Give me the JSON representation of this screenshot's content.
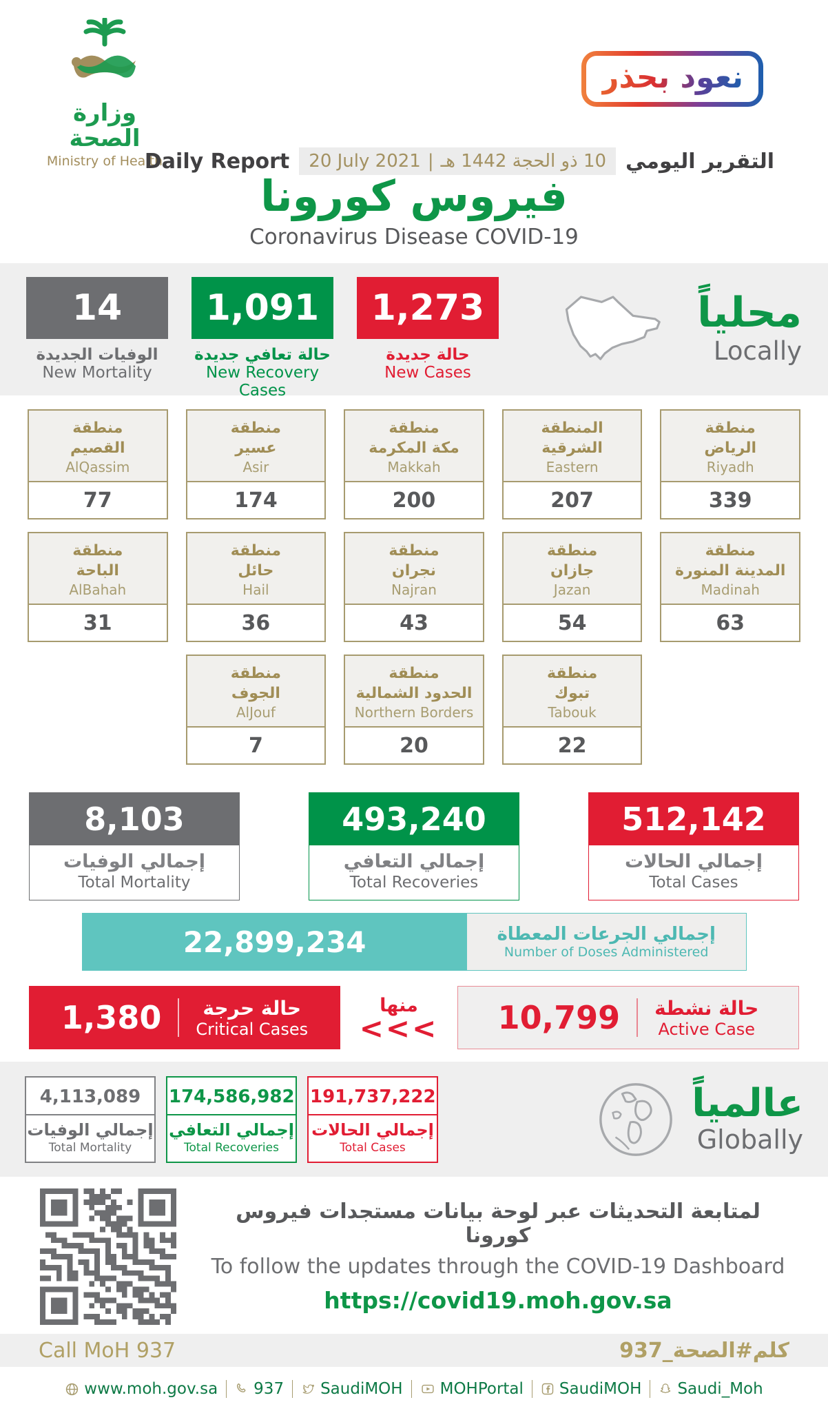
{
  "colors": {
    "green": "#0e9648",
    "box_green": "#009349",
    "red": "#e11d33",
    "gray": "#6d6e71",
    "tan": "#a39161",
    "teal": "#5fc5bf"
  },
  "header": {
    "logo_ar": "وزارة الصحة",
    "logo_en": "Ministry of Health",
    "badge": "نعود بحذر",
    "daily_report_en": "Daily Report",
    "date_en": "20 July 2021",
    "date_sep": "|",
    "date_ar": "10 ذو الحجة 1442 هـ",
    "daily_report_ar": "التقرير اليومي",
    "title_ar": "فيروس كورونا",
    "title_en": "Coronavirus Disease COVID-19"
  },
  "local": {
    "heading_ar": "محلياً",
    "heading_en": "Locally",
    "stats": [
      {
        "value": "14",
        "label_ar": "الوفيات الجديدة",
        "label_en": "New Mortality"
      },
      {
        "value": "1,091",
        "label_ar": "حالة تعافي جديدة",
        "label_en": "New Recovery Cases"
      },
      {
        "value": "1,273",
        "label_ar": "حالة جديدة",
        "label_en": "New Cases"
      }
    ]
  },
  "regions": [
    {
      "ar1": "منطقة",
      "ar2": "القصيم",
      "en": "AlQassim",
      "value": "77"
    },
    {
      "ar1": "منطقة",
      "ar2": "عسير",
      "en": "Asir",
      "value": "174"
    },
    {
      "ar1": "منطقة",
      "ar2": "مكة المكرمة",
      "en": "Makkah",
      "value": "200"
    },
    {
      "ar1": "المنطقة",
      "ar2": "الشرقية",
      "en": "Eastern",
      "value": "207"
    },
    {
      "ar1": "منطقة",
      "ar2": "الرياض",
      "en": "Riyadh",
      "value": "339"
    },
    {
      "ar1": "منطقة",
      "ar2": "الباحة",
      "en": "AlBahah",
      "value": "31"
    },
    {
      "ar1": "منطقة",
      "ar2": "حائل",
      "en": "Hail",
      "value": "36"
    },
    {
      "ar1": "منطقة",
      "ar2": "نجران",
      "en": "Najran",
      "value": "43"
    },
    {
      "ar1": "منطقة",
      "ar2": "جازان",
      "en": "Jazan",
      "value": "54"
    },
    {
      "ar1": "منطقة",
      "ar2": "المدينة المنورة",
      "en": "Madinah",
      "value": "63"
    },
    {
      "ar1": "منطقة",
      "ar2": "الجوف",
      "en": "AlJouf",
      "value": "7"
    },
    {
      "ar1": "منطقة",
      "ar2": "الحدود الشمالية",
      "en": "Northern Borders",
      "value": "20"
    },
    {
      "ar1": "منطقة",
      "ar2": "تبوك",
      "en": "Tabouk",
      "value": "22"
    }
  ],
  "totals": [
    {
      "value": "8,103",
      "label_ar": "إجمالي الوفيات",
      "label_en": "Total Mortality"
    },
    {
      "value": "493,240",
      "label_ar": "إجمالي التعافي",
      "label_en": "Total Recoveries"
    },
    {
      "value": "512,142",
      "label_ar": "إجمالي الحالات",
      "label_en": "Total Cases"
    }
  ],
  "doses": {
    "value": "22,899,234",
    "label_ar": "إجمالي الجرعات المعطاة",
    "label_en": "Number of Doses Administered"
  },
  "critical": {
    "value": "1,380",
    "label_ar": "حالة حرجة",
    "label_en": "Critical Cases"
  },
  "of_them": {
    "label_ar": "منها",
    "chevrons": "<<<"
  },
  "active": {
    "value": "10,799",
    "label_ar": "حالة نشطة",
    "label_en": "Active Case"
  },
  "global": {
    "heading_ar": "عالمياً",
    "heading_en": "Globally",
    "stats": [
      {
        "value": "4,113,089",
        "label_ar": "إجمالي الوفيات",
        "label_en": "Total Mortality"
      },
      {
        "value": "174,586,982",
        "label_ar": "إجمالي التعافي",
        "label_en": "Total Recoveries"
      },
      {
        "value": "191,737,222",
        "label_ar": "إجمالي الحالات",
        "label_en": "Total Cases"
      }
    ]
  },
  "dashboard": {
    "line_ar": "لمتابعة التحديثات عبر لوحة بيانات مستجدات فيروس كورونا",
    "line_en": "To follow the updates through the COVID-19 Dashboard",
    "url": "https://covid19.moh.gov.sa"
  },
  "callbar": {
    "en": "Call MoH 937",
    "ar": "كلم#الصحة_937"
  },
  "footer": {
    "links": [
      {
        "icon": "globe-icon",
        "label": "www.moh.gov.sa"
      },
      {
        "icon": "phone-icon",
        "label": "937"
      },
      {
        "icon": "twitter-icon",
        "label": "SaudiMOH"
      },
      {
        "icon": "youtube-icon",
        "label": "MOHPortal"
      },
      {
        "icon": "facebook-icon",
        "label": "SaudiMOH"
      },
      {
        "icon": "snapchat-icon",
        "label": "Saudi_Moh"
      }
    ]
  }
}
